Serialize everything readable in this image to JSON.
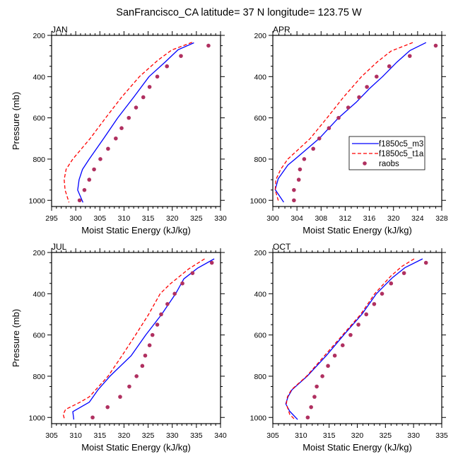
{
  "chart_data": {
    "type": "line",
    "title": "SanFrancisco_CA  latitude= 37 N longitude= 123.75 W",
    "xlabel": "Moist Static Energy (kJ/kg)",
    "ylabel": "Pressure (mb)",
    "legend": {
      "placement": "APR panel, lower-right",
      "entries": [
        {
          "name": "f1850c5_m3",
          "style": "solid line",
          "color": "#0000ff"
        },
        {
          "name": "f1850c5_t1a",
          "style": "dashed line",
          "color": "#ff0000"
        },
        {
          "name": "raobs",
          "style": "dot",
          "color": "#b03060"
        }
      ]
    },
    "y_axis": {
      "reversed": true,
      "range": [
        200,
        1030
      ],
      "ticks": [
        200,
        400,
        600,
        800,
        1000
      ],
      "minor_step": 50
    },
    "panels": [
      {
        "name": "JAN",
        "xlim": [
          295,
          330
        ],
        "xticks": [
          295,
          300,
          305,
          310,
          315,
          320,
          325,
          330
        ],
        "xminor_step": 1,
        "series": [
          {
            "name": "f1850c5_m3",
            "p": [
              236,
              270,
              330,
              400,
              500,
              600,
              700,
              800,
              850,
              900,
              950,
              1010
            ],
            "x": [
              324.5,
              321.2,
              318.5,
              315.2,
              312.0,
              308.7,
              305.8,
              302.8,
              301.4,
              300.7,
              300.4,
              301.5
            ]
          },
          {
            "name": "f1850c5_t1a",
            "p": [
              234,
              271,
              321,
              400,
              500,
              600,
              700,
              800,
              850,
              900,
              950,
              1010
            ],
            "x": [
              324.1,
              319.9,
              317.0,
              313.2,
              309.5,
              306.2,
              303.0,
              299.4,
              298.0,
              297.6,
              297.8,
              298.6
            ]
          },
          {
            "name": "raobs",
            "p": [
              250,
              300,
              350,
              400,
              450,
              500,
              550,
              600,
              650,
              700,
              750,
              800,
              850,
              900,
              950,
              1000
            ],
            "x": [
              327.5,
              321.8,
              318.9,
              316.9,
              315.3,
              314.0,
              312.5,
              311.0,
              309.5,
              308.3,
              306.7,
              305.1,
              303.8,
              302.8,
              301.8,
              300.8
            ]
          }
        ]
      },
      {
        "name": "APR",
        "xlim": [
          300,
          328
        ],
        "xticks": [
          300,
          304,
          308,
          312,
          316,
          320,
          324,
          328
        ],
        "xminor_step": 1,
        "series": [
          {
            "name": "f1850c5_m3",
            "p": [
              235,
              274,
              329,
              400,
              456,
              525,
              600,
              700,
              800,
              829,
              895,
              948,
              1009
            ],
            "x": [
              325.4,
              322.7,
              320.6,
              318.2,
              316.1,
              313.8,
              310.9,
              307.7,
              303.7,
              302.5,
              300.9,
              300.4,
              301.8
            ]
          },
          {
            "name": "f1850c5_t1a",
            "p": [
              235,
              276,
              329,
              400,
              500,
              600,
              700,
              800,
              850,
              900,
              950,
              1010
            ],
            "x": [
              323.2,
              319.6,
              317.3,
              314.7,
              311.7,
              309.0,
              306.2,
              302.5,
              301.3,
              300.5,
              300.4,
              301.0
            ]
          },
          {
            "name": "raobs",
            "p": [
              250,
              300,
              350,
              400,
              450,
              500,
              550,
              600,
              650,
              700,
              750,
              800,
              850,
              900,
              950,
              1000
            ],
            "x": [
              327.0,
              322.7,
              319.3,
              317.2,
              315.6,
              314.3,
              312.5,
              310.9,
              309.3,
              307.7,
              306.7,
              305.2,
              304.5,
              304.3,
              303.5,
              303.5
            ]
          }
        ]
      },
      {
        "name": "JUL",
        "xlim": [
          305,
          340
        ],
        "xticks": [
          305,
          310,
          315,
          320,
          325,
          330,
          335,
          340
        ],
        "xminor_step": 1,
        "series": [
          {
            "name": "f1850c5_m3",
            "p": [
              231,
              275,
              328,
              400,
              500,
              600,
              700,
              800,
              866,
              926,
              972,
              1010
            ],
            "x": [
              338.7,
              335.3,
              332.4,
              330.7,
              327.8,
              324.5,
              321.5,
              317.1,
              314.6,
              312.8,
              309.4,
              309.6
            ]
          },
          {
            "name": "f1850c5_t1a",
            "p": [
              231,
              280,
              354,
              400,
              500,
              600,
              700,
              800,
              900,
              926,
              961,
              985,
              1010
            ],
            "x": [
              336.7,
              333.4,
              329.5,
              327.5,
              325.1,
              322.4,
              319.6,
              316.7,
              312.8,
              310.9,
              307.9,
              307.4,
              307.7
            ]
          },
          {
            "name": "raobs",
            "p": [
              250,
              300,
              350,
              400,
              450,
              500,
              550,
              600,
              650,
              700,
              750,
              800,
              850,
              900,
              950,
              1000
            ],
            "x": [
              338.2,
              334.2,
              332.1,
              330.5,
              329.0,
              327.7,
              326.9,
              325.9,
              325.3,
              324.4,
              323.8,
              322.6,
              321.1,
              319.2,
              316.6,
              313.5
            ]
          }
        ]
      },
      {
        "name": "OCT",
        "xlim": [
          305,
          335
        ],
        "xticks": [
          305,
          310,
          315,
          320,
          325,
          330,
          335
        ],
        "xminor_step": 1,
        "series": [
          {
            "name": "f1850c5_m3",
            "p": [
              231,
              273,
              323,
              400,
              500,
              600,
              700,
              800,
              866,
              900,
              934,
              970,
              1010
            ],
            "x": [
              331.6,
              328.5,
              326.2,
              323.4,
              320.8,
              317.6,
              314.5,
              311.1,
              308.4,
              307.7,
              307.3,
              308.0,
              309.4
            ]
          },
          {
            "name": "f1850c5_t1a",
            "p": [
              231,
              268,
              316,
              400,
              500,
              600,
              700,
              800,
              866,
              900,
              934,
              985,
              1010
            ],
            "x": [
              330.1,
              327.9,
              325.9,
              323.1,
              320.6,
              317.4,
              314.2,
              311.0,
              308.3,
              307.6,
              307.4,
              308.0,
              308.9
            ]
          },
          {
            "name": "raobs",
            "p": [
              250,
              300,
              350,
              400,
              450,
              500,
              550,
              600,
              650,
              700,
              750,
              800,
              850,
              900,
              950,
              1000
            ],
            "x": [
              332.2,
              328.3,
              326.0,
              324.4,
              323.0,
              321.6,
              320.2,
              318.8,
              317.4,
              316.0,
              314.8,
              313.8,
              312.8,
              312.4,
              311.8,
              311.2
            ]
          }
        ]
      }
    ]
  }
}
